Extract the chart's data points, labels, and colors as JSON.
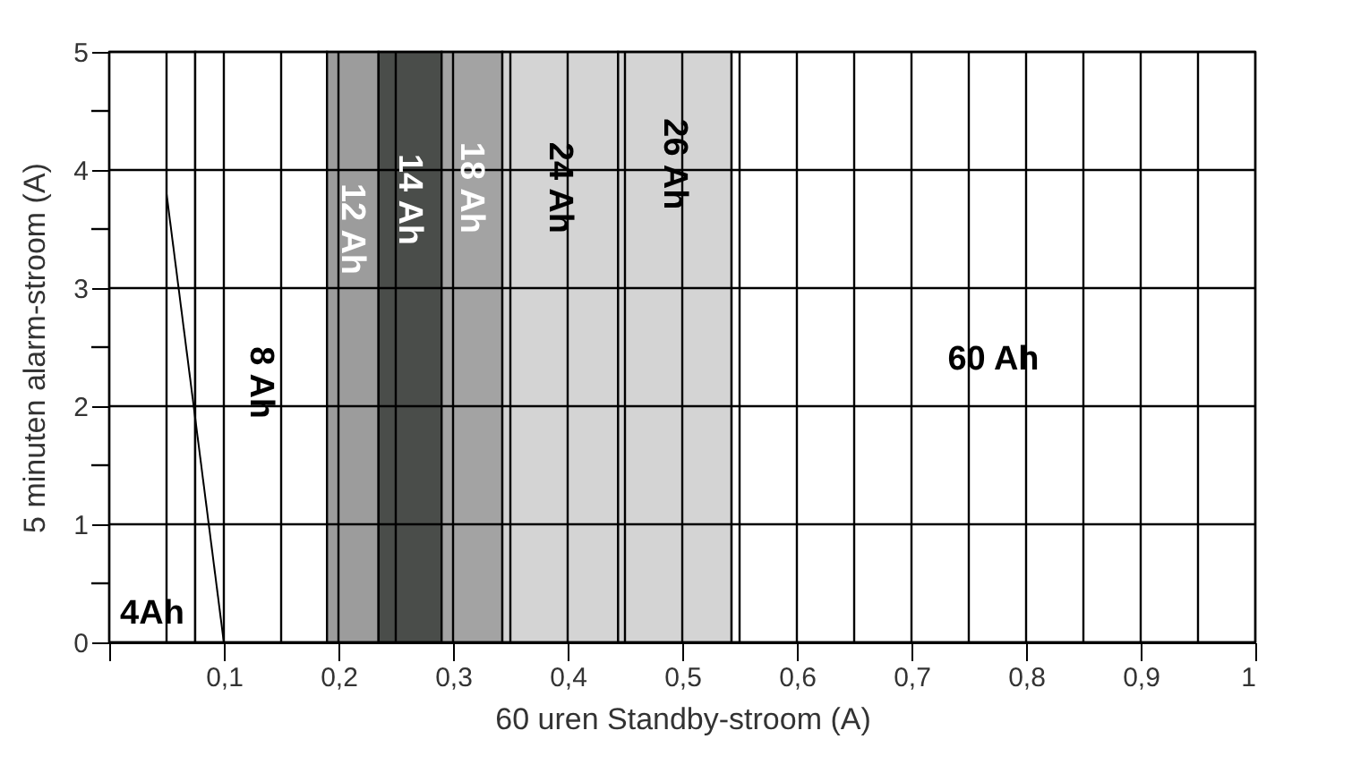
{
  "chart_data": {
    "type": "line",
    "xlabel": "60 uren Standby-stroom (A)",
    "ylabel": "5 minuten alarm-stroom (A)",
    "xlim": [
      0,
      1
    ],
    "ylim": [
      0,
      5
    ],
    "xticks": [
      {
        "value": 0,
        "label": null
      },
      {
        "value": 0.05,
        "label": null
      },
      {
        "value": 0.1,
        "label": "0,1"
      },
      {
        "value": 0.15,
        "label": null
      },
      {
        "value": 0.2,
        "label": "0,2"
      },
      {
        "value": 0.25,
        "label": null
      },
      {
        "value": 0.3,
        "label": "0,3"
      },
      {
        "value": 0.35,
        "label": null
      },
      {
        "value": 0.4,
        "label": "0,4"
      },
      {
        "value": 0.45,
        "label": null
      },
      {
        "value": 0.5,
        "label": "0,5"
      },
      {
        "value": 0.55,
        "label": null
      },
      {
        "value": 0.6,
        "label": "0,6"
      },
      {
        "value": 0.65,
        "label": null
      },
      {
        "value": 0.7,
        "label": "0,7"
      },
      {
        "value": 0.75,
        "label": null
      },
      {
        "value": 0.8,
        "label": "0,8"
      },
      {
        "value": 0.85,
        "label": null
      },
      {
        "value": 0.9,
        "label": "0,9"
      },
      {
        "value": 0.95,
        "label": null
      },
      {
        "value": 1,
        "label": "1"
      }
    ],
    "yticks": [
      0,
      {
        "value": 0.5,
        "label": null
      },
      1,
      {
        "value": 1.5,
        "label": null
      },
      2,
      {
        "value": 2.5,
        "label": null
      },
      3,
      {
        "value": 3.5,
        "label": null
      },
      4,
      {
        "value": 4.5,
        "label": null
      },
      5
    ],
    "grid": true,
    "series": [
      {
        "color": "#000000",
        "x": [
          0.05,
          0.1
        ],
        "values": [
          3.8,
          0
        ]
      }
    ],
    "bands": [
      {
        "axis": "x",
        "from": 0,
        "to": 0.075,
        "label": "4Ah",
        "color": "#ffffff"
      },
      {
        "axis": "x",
        "from": 0.075,
        "to": 0.19,
        "label": "8 Ah",
        "color": "#ffffff"
      },
      {
        "axis": "x",
        "from": 0.19,
        "to": 0.235,
        "label": "12 Ah",
        "color": "#9c9c9c"
      },
      {
        "axis": "x",
        "from": 0.235,
        "to": 0.29,
        "label": "14 Ah",
        "color": "#4a4d4a"
      },
      {
        "axis": "x",
        "from": 0.29,
        "to": 0.343,
        "label": "18 Ah",
        "color": "#a3a3a3"
      },
      {
        "axis": "x",
        "from": 0.343,
        "to": 0.444,
        "label": "24 Ah",
        "color": "#d4d4d4"
      },
      {
        "axis": "x",
        "from": 0.444,
        "to": 0.543,
        "label": "26 Ah",
        "color": "#d4d4d4"
      },
      {
        "axis": "x",
        "from": 0.543,
        "to": 1,
        "label": "60 Ah",
        "color": "#ffffff"
      }
    ]
  }
}
